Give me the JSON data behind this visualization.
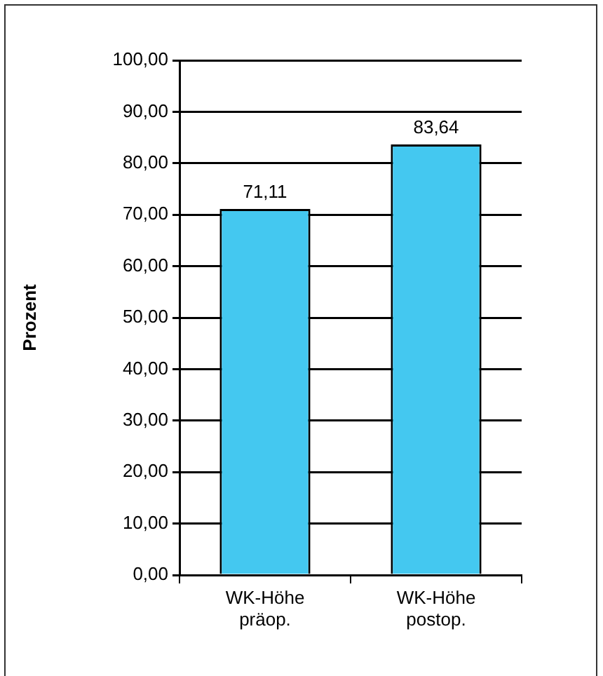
{
  "chart_data": {
    "type": "bar",
    "ylabel": "Prozent",
    "categories": [
      "WK-Höhe präop.",
      "WK-Höhe postop."
    ],
    "values": [
      71.11,
      83.64
    ],
    "color": "#44c8f0",
    "value_labels": [
      "71,11",
      "83,64"
    ],
    "ylim": [
      0,
      100
    ],
    "yticks": [
      {
        "value": 0,
        "label": "0,00"
      },
      {
        "value": 10,
        "label": "10,00"
      },
      {
        "value": 20,
        "label": "20,00"
      },
      {
        "value": 30,
        "label": "30,00"
      },
      {
        "value": 40,
        "label": "40,00"
      },
      {
        "value": 50,
        "label": "50,00"
      },
      {
        "value": 60,
        "label": "60,00"
      },
      {
        "value": 70,
        "label": "70,00"
      },
      {
        "value": 80,
        "label": "80,00"
      },
      {
        "value": 90,
        "label": "90,00"
      },
      {
        "value": 100,
        "label": "100,00"
      }
    ],
    "grid": "y",
    "legend": false
  }
}
